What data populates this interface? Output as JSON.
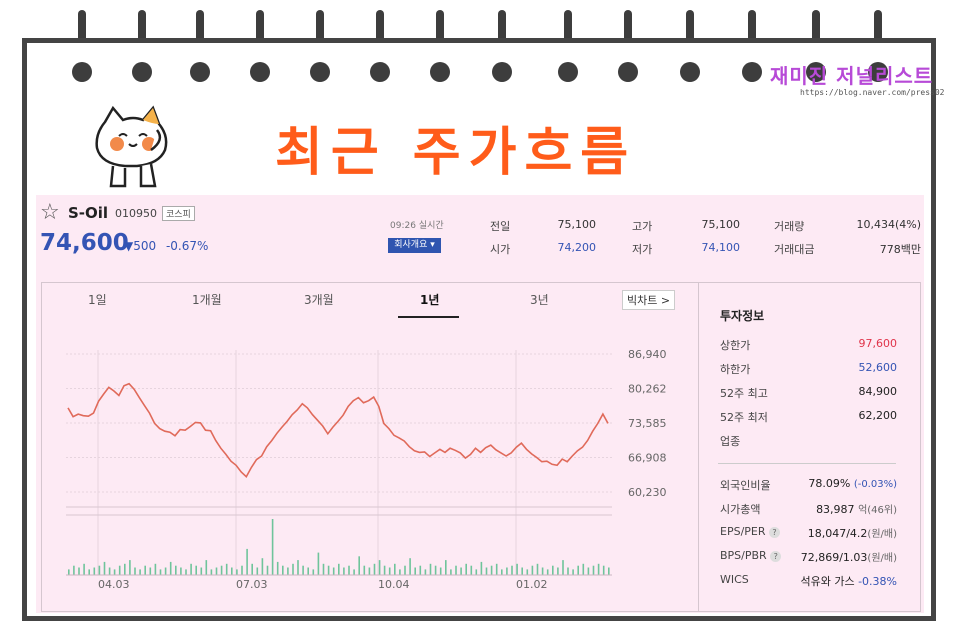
{
  "header": {
    "title": "최근 주가흐름",
    "brand_name": "재미진 저널리스트",
    "brand_url": "https://blog.naver.com/press02"
  },
  "stock": {
    "name": "S-Oil",
    "code": "010950",
    "market": "코스피",
    "price": "74,600",
    "change": "▼500",
    "change_pct": "-0.67%",
    "realtime_label": "09:26 실시간",
    "company_button": "회사개요 ▾"
  },
  "quote": {
    "prev_close_label": "전일",
    "prev_close": "75,100",
    "open_label": "시가",
    "open": "74,200",
    "high_label": "고가",
    "high": "75,100",
    "low_label": "저가",
    "low": "74,100",
    "volume_label": "거래량",
    "volume": "10,434(4%)",
    "amount_label": "거래대금",
    "amount": "778백만"
  },
  "tabs": [
    "1일",
    "1개월",
    "3개월",
    "1년",
    "3년"
  ],
  "active_tab": "1년",
  "more_chart": "빅차트 >",
  "invest": {
    "title": "투자정보",
    "upper_label": "상한가",
    "upper": "97,600",
    "lower_label": "하한가",
    "lower": "52,600",
    "high52_label": "52주 최고",
    "high52": "84,900",
    "low52_label": "52주 최저",
    "low52": "62,200",
    "industry_label": "업종",
    "foreign_label": "외국인비율",
    "foreign": "78.09%",
    "foreign_chg": "(-0.03%)",
    "mcap_label": "시가총액",
    "mcap": "83,987",
    "mcap_unit": "억(46위)",
    "eps_label": "EPS/PER",
    "eps": "18,047/4.2",
    "eps_unit": "(원/배)",
    "bps_label": "BPS/PBR",
    "bps": "72,869/1.03",
    "bps_unit": "(원/배)",
    "wics_label": "WICS",
    "wics": "석유와 가스",
    "wics_chg": "-0.38%"
  },
  "colors": {
    "accent": "#ff5c1a",
    "price_blue": "#3454b4",
    "up_red": "#e0344a",
    "line": "#e06a5a",
    "volume": "#6fc49b"
  },
  "chart_data": {
    "type": "line",
    "y_ticks": [
      "86,940",
      "80,262",
      "73,585",
      "66,908",
      "60,230"
    ],
    "x_ticks": [
      "04.03",
      "07.03",
      "10.04",
      "01.02"
    ],
    "ylim": [
      60230,
      86940
    ],
    "values": [
      76500,
      74800,
      75300,
      75000,
      74900,
      75500,
      77800,
      79200,
      80500,
      79800,
      78900,
      80800,
      81200,
      80100,
      78500,
      77000,
      75500,
      73500,
      72500,
      72000,
      71800,
      71100,
      72300,
      72200,
      72900,
      73700,
      73600,
      72200,
      72100,
      70200,
      68700,
      67500,
      66200,
      65400,
      64100,
      63200,
      65000,
      66500,
      67200,
      69000,
      70200,
      71600,
      72800,
      73900,
      75200,
      76100,
      77300,
      76500,
      75200,
      74100,
      73000,
      71500,
      72800,
      73900,
      75100,
      76800,
      77900,
      78500,
      77500,
      77900,
      78600,
      76800,
      73500,
      72500,
      71200,
      70700,
      70100,
      69000,
      68200,
      67900,
      68000,
      67100,
      67800,
      68500,
      67900,
      68700,
      68300,
      67800,
      66800,
      67500,
      68700,
      67900,
      68800,
      69300,
      68400,
      67800,
      67200,
      67800,
      68900,
      69700,
      68500,
      67600,
      66900,
      66100,
      66200,
      65600,
      65400,
      66600,
      66100,
      67200,
      68200,
      68900,
      70200,
      72000,
      73500,
      75300,
      73500
    ]
  },
  "volume_data": [
    3,
    5,
    4,
    6,
    3,
    4,
    5,
    7,
    4,
    3,
    5,
    6,
    8,
    4,
    3,
    5,
    4,
    6,
    3,
    4,
    7,
    5,
    4,
    3,
    6,
    5,
    4,
    8,
    3,
    4,
    5,
    6,
    4,
    3,
    5,
    14,
    6,
    4,
    9,
    5,
    30,
    7,
    5,
    4,
    6,
    8,
    5,
    4,
    3,
    12,
    6,
    5,
    4,
    6,
    4,
    5,
    3,
    10,
    5,
    4,
    6,
    8,
    5,
    4,
    6,
    3,
    5,
    9,
    4,
    5,
    3,
    6,
    5,
    4,
    8,
    3,
    5,
    4,
    6,
    5,
    3,
    7,
    4,
    5,
    6,
    3,
    4,
    5,
    6,
    4,
    3,
    5,
    6,
    4,
    3,
    5,
    4,
    8,
    4,
    3,
    5,
    6,
    4,
    5,
    6,
    5,
    4
  ]
}
